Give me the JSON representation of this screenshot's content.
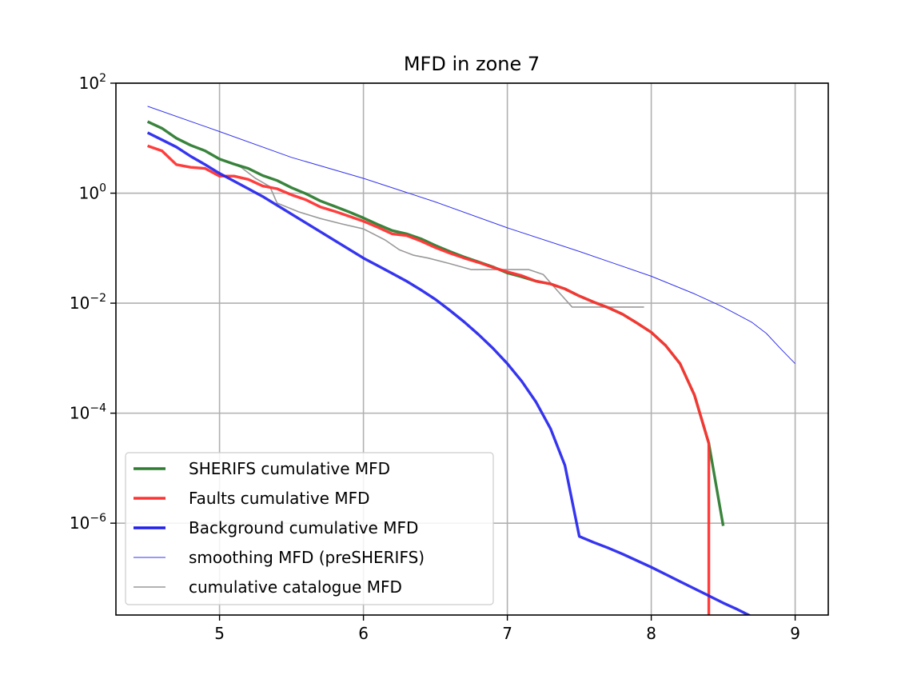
{
  "chart_data": {
    "type": "line",
    "title": "MFD in zone 7",
    "xlabel": "",
    "ylabel": "",
    "xlim": [
      4.28,
      9.23
    ],
    "ylim_log10": [
      -7.67,
      2
    ],
    "yscale": "log",
    "grid": true,
    "legend_position": "lower-left",
    "x_ticks": [
      5,
      6,
      7,
      8,
      9
    ],
    "x_tick_labels": [
      "5",
      "6",
      "7",
      "8",
      "9"
    ],
    "y_ticks_log10": [
      2,
      0,
      -2,
      -4,
      -6
    ],
    "y_tick_labels": [
      {
        "base": "10",
        "exp": "2"
      },
      {
        "base": "10",
        "exp": "0"
      },
      {
        "base": "10",
        "exp": "−2"
      },
      {
        "base": "10",
        "exp": "−4"
      },
      {
        "base": "10",
        "exp": "−6"
      }
    ],
    "series": [
      {
        "name": "smoothing MFD (preSHERIFS)",
        "color": "#3333ee",
        "width": 1,
        "opacity": 1,
        "x": [
          4.5,
          5.0,
          5.5,
          6.0,
          6.5,
          7.0,
          7.5,
          8.0,
          8.3,
          8.5,
          8.7,
          8.8,
          8.9,
          9.0
        ],
        "log10y": [
          1.58,
          1.12,
          0.65,
          0.27,
          -0.16,
          -0.63,
          -1.06,
          -1.51,
          -1.83,
          -2.07,
          -2.35,
          -2.55,
          -2.83,
          -3.1
        ]
      },
      {
        "name": "cumulative catalogue MFD",
        "color": "#999999",
        "width": 1.6,
        "opacity": 1,
        "x": [
          5.05,
          5.15,
          5.25,
          5.35,
          5.4,
          5.55,
          5.7,
          5.85,
          6.0,
          6.15,
          6.25,
          6.35,
          6.45,
          6.6,
          6.75,
          6.9,
          7.0,
          7.15,
          7.25,
          7.35,
          7.45,
          7.6,
          7.8,
          7.95
        ],
        "log10y": [
          0.58,
          0.47,
          0.27,
          0.12,
          -0.18,
          -0.34,
          -0.46,
          -0.56,
          -0.65,
          -0.85,
          -1.03,
          -1.13,
          -1.18,
          -1.28,
          -1.39,
          -1.39,
          -1.39,
          -1.39,
          -1.48,
          -1.78,
          -2.07,
          -2.07,
          -2.07,
          -2.07
        ]
      },
      {
        "name": "SHERIFS cumulative MFD",
        "color": "#2e7d32",
        "width": 3.4,
        "opacity": 0.95,
        "x": [
          4.5,
          4.6,
          4.7,
          4.8,
          4.9,
          5.0,
          5.1,
          5.2,
          5.3,
          5.4,
          5.5,
          5.6,
          5.7,
          5.8,
          5.9,
          6.0,
          6.1,
          6.2,
          6.3,
          6.4,
          6.5,
          6.6,
          6.7,
          6.8,
          6.9,
          7.0,
          7.1,
          7.2,
          7.3,
          7.4,
          7.5,
          7.6,
          7.7,
          7.8,
          7.9,
          8.0,
          8.1,
          8.2,
          8.3,
          8.4,
          8.5
        ],
        "log10y": [
          1.3,
          1.18,
          1.0,
          0.87,
          0.77,
          0.62,
          0.53,
          0.45,
          0.32,
          0.23,
          0.1,
          -0.01,
          -0.14,
          -0.24,
          -0.34,
          -0.45,
          -0.57,
          -0.68,
          -0.74,
          -0.83,
          -0.95,
          -1.06,
          -1.16,
          -1.25,
          -1.34,
          -1.45,
          -1.52,
          -1.6,
          -1.65,
          -1.74,
          -1.87,
          -1.98,
          -2.08,
          -2.2,
          -2.36,
          -2.53,
          -2.77,
          -3.1,
          -3.67,
          -4.55,
          -6.05
        ]
      },
      {
        "name": "Faults cumulative MFD",
        "color": "#ff3333",
        "width": 3.4,
        "opacity": 0.95,
        "x": [
          4.5,
          4.6,
          4.7,
          4.8,
          4.9,
          5.0,
          5.1,
          5.2,
          5.3,
          5.4,
          5.5,
          5.6,
          5.7,
          5.8,
          5.9,
          6.0,
          6.1,
          6.2,
          6.3,
          6.4,
          6.5,
          6.6,
          6.7,
          6.8,
          6.9,
          7.0,
          7.1,
          7.2,
          7.3,
          7.4,
          7.5,
          7.6,
          7.7,
          7.8,
          7.9,
          8.0,
          8.1,
          8.2,
          8.3,
          8.4,
          8.4
        ],
        "log10y": [
          0.86,
          0.77,
          0.52,
          0.47,
          0.45,
          0.31,
          0.31,
          0.25,
          0.13,
          0.08,
          -0.03,
          -0.12,
          -0.25,
          -0.33,
          -0.42,
          -0.51,
          -0.62,
          -0.74,
          -0.77,
          -0.87,
          -0.99,
          -1.09,
          -1.18,
          -1.26,
          -1.35,
          -1.43,
          -1.5,
          -1.6,
          -1.65,
          -1.74,
          -1.87,
          -1.98,
          -2.08,
          -2.2,
          -2.36,
          -2.53,
          -2.77,
          -3.1,
          -3.67,
          -4.55,
          -7.67
        ]
      },
      {
        "name": "Background cumulative MFD",
        "color": "#1f1fee",
        "width": 3.4,
        "opacity": 0.9,
        "x": [
          4.5,
          4.6,
          4.7,
          4.8,
          4.9,
          5.0,
          5.1,
          5.2,
          5.3,
          5.4,
          5.5,
          5.6,
          5.7,
          5.8,
          5.9,
          6.0,
          6.1,
          6.2,
          6.3,
          6.4,
          6.5,
          6.6,
          6.7,
          6.8,
          6.9,
          7.0,
          7.1,
          7.2,
          7.3,
          7.4,
          7.5,
          7.6,
          7.7,
          7.8,
          7.9,
          8.0,
          8.1,
          8.2,
          8.3,
          8.4,
          8.5,
          8.6,
          8.7,
          8.8,
          8.9,
          9.0
        ],
        "log10y": [
          1.1,
          0.97,
          0.84,
          0.67,
          0.52,
          0.36,
          0.22,
          0.08,
          -0.06,
          -0.22,
          -0.38,
          -0.54,
          -0.7,
          -0.86,
          -1.02,
          -1.18,
          -1.32,
          -1.46,
          -1.6,
          -1.76,
          -1.93,
          -2.13,
          -2.34,
          -2.57,
          -2.82,
          -3.1,
          -3.42,
          -3.8,
          -4.28,
          -4.95,
          -6.24,
          -6.35,
          -6.45,
          -6.56,
          -6.68,
          -6.8,
          -6.93,
          -7.06,
          -7.19,
          -7.32,
          -7.45,
          -7.57,
          -7.7,
          -7.84,
          -8.02,
          -8.25
        ]
      }
    ],
    "legend": [
      "SHERIFS cumulative MFD",
      "Faults cumulative MFD",
      "Background cumulative MFD",
      "smoothing MFD (preSHERIFS)",
      "cumulative catalogue MFD"
    ],
    "legend_styles": [
      {
        "color": "#2e7d32",
        "width": 3.4
      },
      {
        "color": "#ff3333",
        "width": 3.4
      },
      {
        "color": "#1f1fee",
        "width": 3.4
      },
      {
        "color": "#3333ee",
        "width": 1
      },
      {
        "color": "#999999",
        "width": 1.6
      }
    ]
  }
}
